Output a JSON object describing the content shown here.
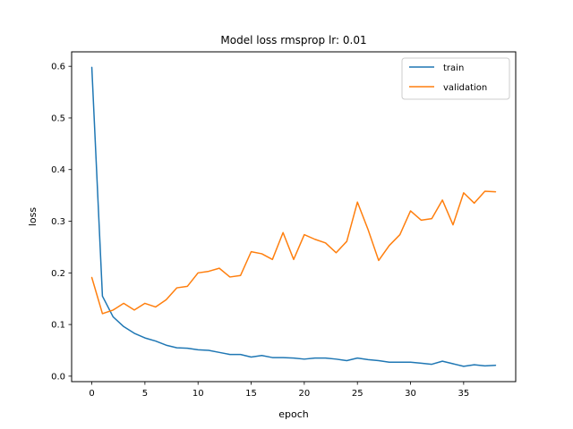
{
  "chart_data": {
    "type": "line",
    "title": "Model loss rmsprop lr: 0.01",
    "xlabel": "epoch",
    "ylabel": "loss",
    "xlim": [
      -1.9,
      39.9
    ],
    "ylim": [
      -0.0106,
      0.628
    ],
    "xticks": [
      0,
      5,
      10,
      15,
      20,
      25,
      30,
      35
    ],
    "yticks": [
      0.0,
      0.1,
      0.2,
      0.3,
      0.4,
      0.5,
      0.6
    ],
    "ytick_labels": [
      "0.0",
      "0.1",
      "0.2",
      "0.3",
      "0.4",
      "0.5",
      "0.6"
    ],
    "grid": false,
    "legend_position": "top-right",
    "x": [
      0,
      1,
      2,
      3,
      4,
      5,
      6,
      7,
      8,
      9,
      10,
      11,
      12,
      13,
      14,
      15,
      16,
      17,
      18,
      19,
      20,
      21,
      22,
      23,
      24,
      25,
      26,
      27,
      28,
      29,
      30,
      31,
      32,
      33,
      34,
      35,
      36,
      37,
      38
    ],
    "series": [
      {
        "name": "train",
        "color": "#1f77b4",
        "values": [
          0.598,
          0.155,
          0.115,
          0.096,
          0.083,
          0.074,
          0.068,
          0.06,
          0.055,
          0.054,
          0.051,
          0.05,
          0.046,
          0.042,
          0.042,
          0.037,
          0.04,
          0.036,
          0.036,
          0.035,
          0.033,
          0.035,
          0.035,
          0.033,
          0.03,
          0.035,
          0.032,
          0.03,
          0.027,
          0.027,
          0.027,
          0.025,
          0.023,
          0.029,
          0.024,
          0.019,
          0.022,
          0.02,
          0.021
        ]
      },
      {
        "name": "validation",
        "color": "#ff7f0e",
        "values": [
          0.191,
          0.121,
          0.128,
          0.141,
          0.128,
          0.141,
          0.134,
          0.148,
          0.171,
          0.174,
          0.2,
          0.203,
          0.209,
          0.192,
          0.195,
          0.241,
          0.237,
          0.226,
          0.278,
          0.226,
          0.274,
          0.265,
          0.258,
          0.239,
          0.261,
          0.337,
          0.284,
          0.224,
          0.253,
          0.274,
          0.32,
          0.302,
          0.305,
          0.341,
          0.293,
          0.355,
          0.335,
          0.358,
          0.357
        ]
      }
    ]
  }
}
